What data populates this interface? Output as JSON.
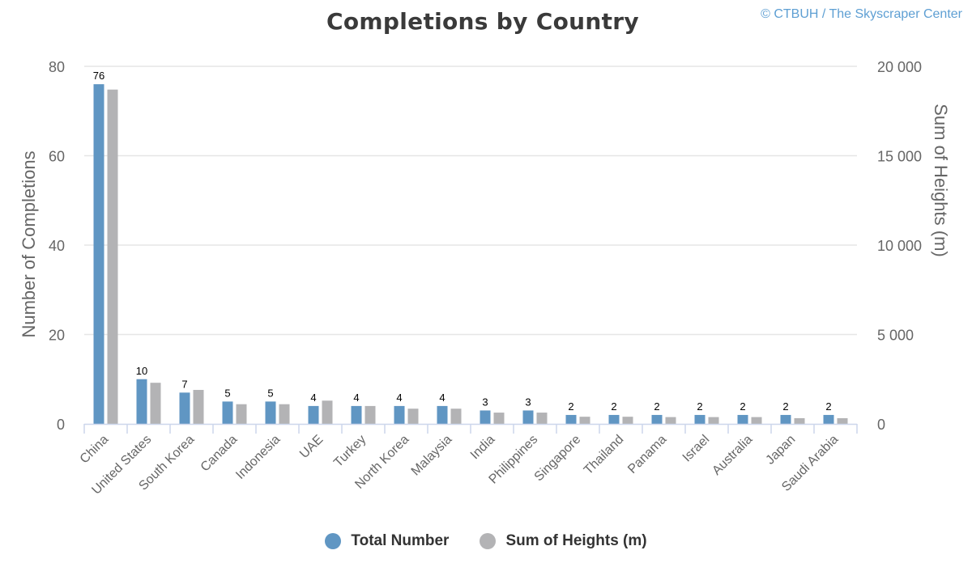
{
  "header": {
    "title": "Completions by Country",
    "credit": "© CTBUH / The Skyscraper Center"
  },
  "legend": {
    "items": [
      {
        "label": "Total Number",
        "color": "#6096c3"
      },
      {
        "label": "Sum of Heights (m)",
        "color": "#b3b3b5"
      }
    ]
  },
  "colors": {
    "primary": "#6096c3",
    "secondary": "#b3b3b5",
    "gridline": "#e6e6e6",
    "axis_line": "#ccd6eb",
    "tick_text": "#666666",
    "axis_title": "#666666",
    "data_label": "#000000"
  },
  "chart_data": {
    "type": "bar",
    "title": "Completions by Country",
    "credit": "© CTBUH / The Skyscraper Center",
    "xlabel": "",
    "ylabel": "Number of Completions",
    "ylabel_right": "Sum of Heights (m)",
    "ylim": [
      0,
      80
    ],
    "ylim_right": [
      0,
      20000
    ],
    "yticks": [
      "0",
      "20",
      "40",
      "60",
      "80"
    ],
    "yticks_right": [
      "0",
      "5 000",
      "10 000",
      "15 000",
      "20 000"
    ],
    "grid": true,
    "legend_position": "bottom",
    "categories": [
      "China",
      "United States",
      "South Korea",
      "Canada",
      "Indonesia",
      "UAE",
      "Turkey",
      "North Korea",
      "Malaysia",
      "India",
      "Philippines",
      "Singapore",
      "Thailand",
      "Panama",
      "Israel",
      "Australia",
      "Japan",
      "Saudi Arabia"
    ],
    "series": [
      {
        "name": "Total Number",
        "axis": "left",
        "color": "#6096c3",
        "show_labels": true,
        "values": [
          76,
          10,
          7,
          5,
          5,
          4,
          4,
          4,
          4,
          3,
          3,
          2,
          2,
          2,
          2,
          2,
          2,
          2
        ]
      },
      {
        "name": "Sum of Heights (m)",
        "axis": "right",
        "color": "#b3b3b5",
        "show_labels": false,
        "values": [
          18700,
          2300,
          1900,
          1100,
          1100,
          1300,
          1000,
          850,
          850,
          630,
          630,
          400,
          400,
          380,
          380,
          380,
          320,
          320
        ]
      }
    ]
  }
}
